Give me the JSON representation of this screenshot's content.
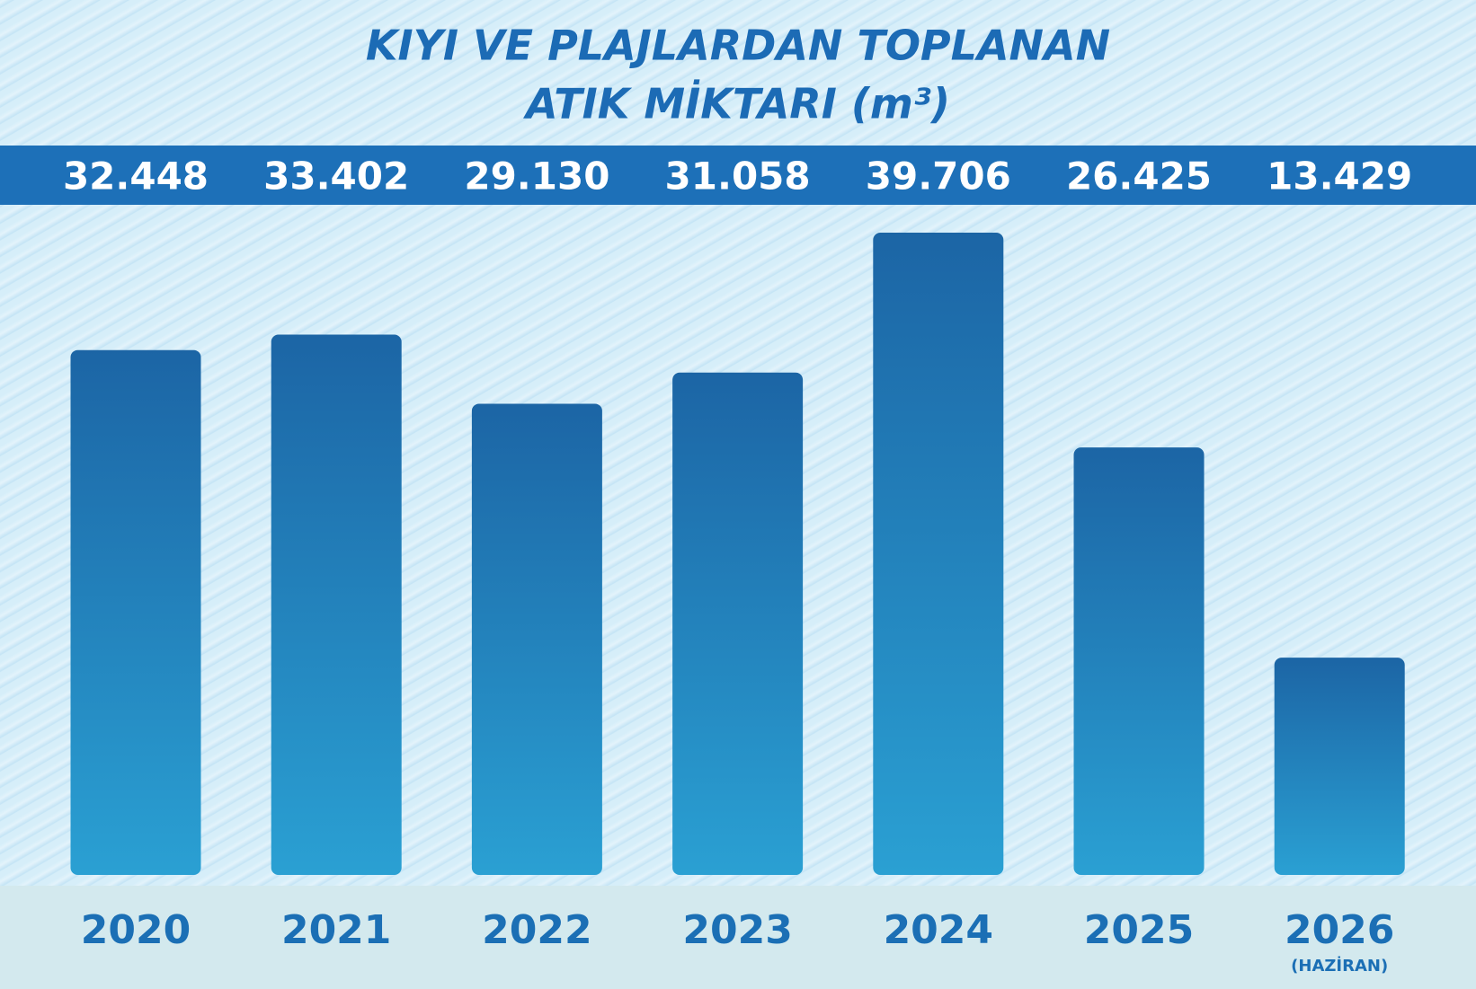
{
  "chart_data": {
    "type": "bar",
    "title": [
      "KIYI VE PLAJLARDAN TOPLANAN",
      "ATIK MİKTARI (m³)"
    ],
    "categories": [
      "2020",
      "2021",
      "2022",
      "2023",
      "2024",
      "2025",
      "2026"
    ],
    "category_sublabels": [
      null,
      null,
      null,
      null,
      null,
      null,
      "(HAZİRAN)"
    ],
    "values": [
      32448,
      33402,
      29130,
      31058,
      39706,
      26425,
      13429
    ],
    "value_labels": [
      "32.448",
      "33.402",
      "29.130",
      "31.058",
      "39.706",
      "26.425",
      "13.429"
    ],
    "color": "#1f6aa8"
  }
}
